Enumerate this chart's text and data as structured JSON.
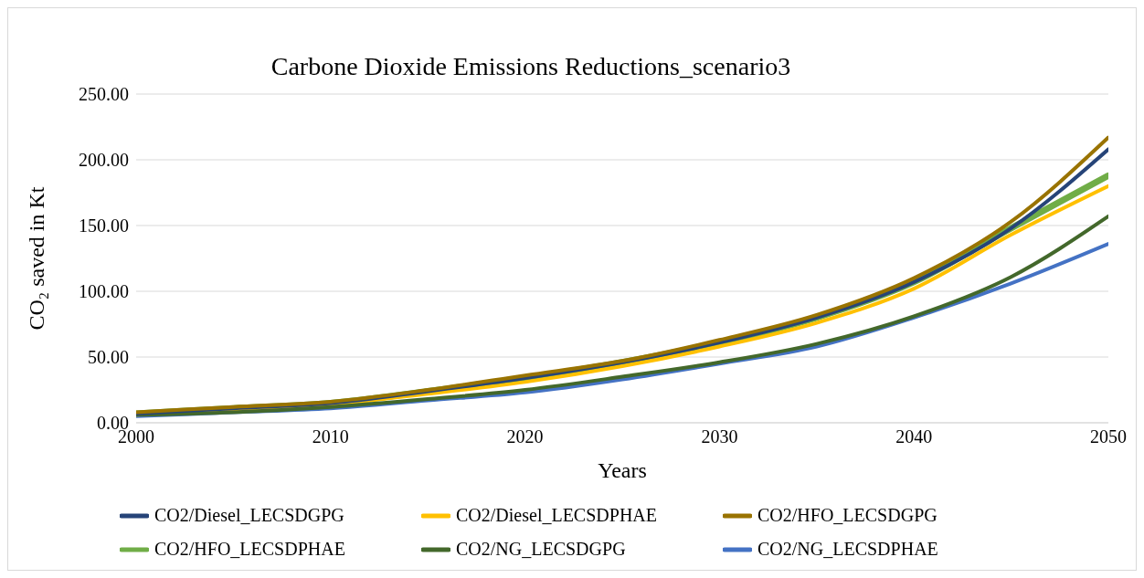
{
  "chart_data": {
    "type": "line",
    "title": "Carbone Dioxide Emissions Reductions_scenario3",
    "xlabel": "Years",
    "ylabel": "CO₂ saved in Kt",
    "x": [
      2000,
      2005,
      2010,
      2015,
      2020,
      2025,
      2030,
      2035,
      2040,
      2045,
      2050
    ],
    "xlim": [
      2000,
      2050
    ],
    "xticks": [
      2000,
      2010,
      2020,
      2030,
      2040,
      2050
    ],
    "ylim": [
      0,
      250
    ],
    "yticks": [
      {
        "value": 0,
        "label": "0.00"
      },
      {
        "value": 50,
        "label": "50.00"
      },
      {
        "value": 100,
        "label": "100.00"
      },
      {
        "value": 150,
        "label": "150.00"
      },
      {
        "value": 200,
        "label": "200.00"
      },
      {
        "value": 250,
        "label": "250.00"
      }
    ],
    "grid": "y",
    "legend": "bottom",
    "marker": "none",
    "line_style": "solid",
    "series": [
      {
        "name": "CO2/HFO_LECSDPHAE",
        "color": "#70ad47",
        "values": [
          7,
          11,
          15,
          24,
          34,
          46,
          61,
          80,
          107,
          148,
          188
        ]
      },
      {
        "name": "CO2/NG_LECSDPHAE",
        "color": "#4472c4",
        "values": [
          5,
          8,
          11,
          17,
          23,
          33,
          45,
          58,
          80,
          106,
          136
        ]
      },
      {
        "name": "CO2/Diesel_LECSDPHAE",
        "color": "#ffc000",
        "values": [
          6,
          10,
          14,
          22,
          31,
          43,
          58,
          76,
          102,
          143,
          180
        ]
      },
      {
        "name": "CO2/NG_LECSDGPG",
        "color": "#43682b",
        "values": [
          6,
          8,
          12,
          18,
          25,
          35,
          46,
          60,
          81,
          111,
          157
        ]
      },
      {
        "name": "CO2/Diesel_LECSDGPG",
        "color": "#264478",
        "values": [
          7,
          11,
          15,
          24,
          34,
          46,
          61,
          80,
          107,
          148,
          208
        ]
      },
      {
        "name": "CO2/HFO_LECSDGPG",
        "color": "#997300",
        "values": [
          8,
          12,
          16,
          25,
          36,
          47,
          63,
          82,
          110,
          153,
          217
        ]
      }
    ]
  }
}
